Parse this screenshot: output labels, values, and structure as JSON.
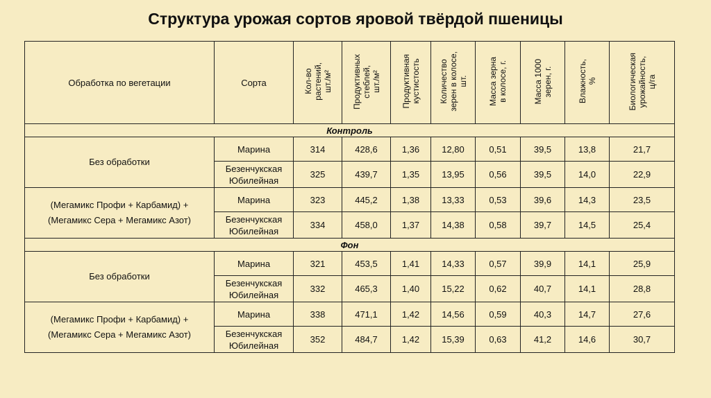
{
  "title": "Структура урожая сортов яровой твёрдой пшеницы",
  "header": {
    "treatment": "Обработка по вегетации",
    "variety": "Сорта",
    "c1": [
      "Кол-во",
      "растений,",
      "шт./м²"
    ],
    "c2": [
      "Продуктивных",
      "стеблей,",
      "шт./м²"
    ],
    "c3": [
      "Продуктивная",
      "кустистость"
    ],
    "c4": [
      "Количество",
      "зерен в колосе,",
      "шт."
    ],
    "c5": [
      "Масса зерна",
      "в колосе, г."
    ],
    "c6": [
      "Масса 1000",
      "зерен, г."
    ],
    "c7": [
      "Влажность,",
      "%"
    ],
    "c8": [
      "Биологическая",
      "урожайность,",
      "ц/га"
    ]
  },
  "sections": [
    {
      "name": "Контроль",
      "groups": [
        {
          "treatment_lines": [
            "Без обработки"
          ],
          "rows": [
            {
              "variety": [
                "Марина"
              ],
              "values": [
                "314",
                "428,6",
                "1,36",
                "12,80",
                "0,51",
                "39,5",
                "13,8",
                "21,7"
              ]
            },
            {
              "variety": [
                "Безенчукская",
                "Юбилейная"
              ],
              "values": [
                "325",
                "439,7",
                "1,35",
                "13,95",
                "0,56",
                "39,5",
                "14,0",
                "22,9"
              ]
            }
          ]
        },
        {
          "treatment_lines": [
            "(Мегамикс Профи + Карбамид) +",
            "(Мегамикс Сера + Мегамикс Азот)"
          ],
          "rows": [
            {
              "variety": [
                "Марина"
              ],
              "values": [
                "323",
                "445,2",
                "1,38",
                "13,33",
                "0,53",
                "39,6",
                "14,3",
                "23,5"
              ]
            },
            {
              "variety": [
                "Безенчукская",
                "Юбилейная"
              ],
              "values": [
                "334",
                "458,0",
                "1,37",
                "14,38",
                "0,58",
                "39,7",
                "14,5",
                "25,4"
              ]
            }
          ]
        }
      ]
    },
    {
      "name": "Фон",
      "groups": [
        {
          "treatment_lines": [
            "Без обработки"
          ],
          "rows": [
            {
              "variety": [
                "Марина"
              ],
              "values": [
                "321",
                "453,5",
                "1,41",
                "14,33",
                "0,57",
                "39,9",
                "14,1",
                "25,9"
              ]
            },
            {
              "variety": [
                "Безенчукская",
                "Юбилейная"
              ],
              "values": [
                "332",
                "465,3",
                "1,40",
                "15,22",
                "0,62",
                "40,7",
                "14,1",
                "28,8"
              ]
            }
          ]
        },
        {
          "treatment_lines": [
            "(Мегамикс Профи + Карбамид) +",
            "(Мегамикс Сера + Мегамикс Азот)"
          ],
          "rows": [
            {
              "variety": [
                "Марина"
              ],
              "values": [
                "338",
                "471,1",
                "1,42",
                "14,56",
                "0,59",
                "40,3",
                "14,7",
                "27,6"
              ]
            },
            {
              "variety": [
                "Безенчукская",
                "Юбилейная"
              ],
              "values": [
                "352",
                "484,7",
                "1,42",
                "15,39",
                "0,63",
                "41,2",
                "14,6",
                "30,7"
              ]
            }
          ]
        }
      ]
    }
  ]
}
